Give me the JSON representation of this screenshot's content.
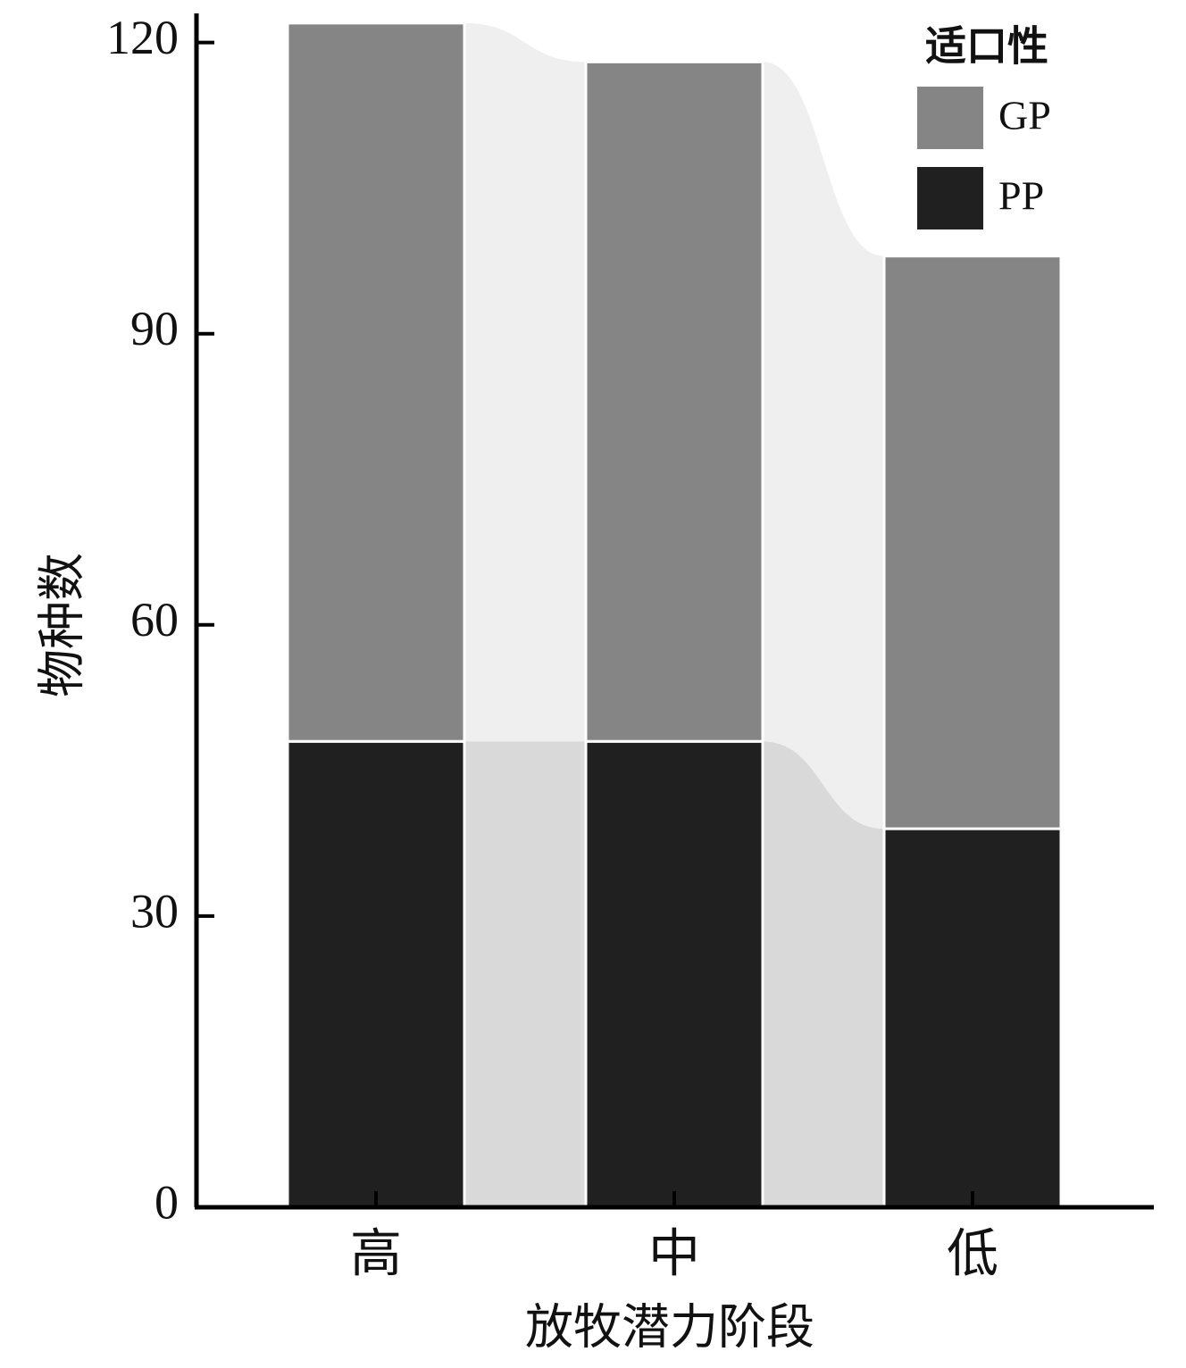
{
  "chart_data": {
    "type": "alluvial-bar",
    "x_label": "放牧潜力阶段",
    "y_label": "物种数",
    "categories": [
      "高",
      "中",
      "低"
    ],
    "series": [
      {
        "name": "PP",
        "color": "#202020",
        "flow_color": "#d9d9d9",
        "values": [
          48,
          48,
          39
        ]
      },
      {
        "name": "GP",
        "color": "#858585",
        "flow_color": "#efefef",
        "values": [
          74,
          70,
          59
        ]
      }
    ],
    "legend_title": "适口性",
    "legend_position": "upper right",
    "ylim": [
      0,
      123
    ],
    "yticks": [
      0,
      30,
      60,
      90,
      120
    ]
  }
}
